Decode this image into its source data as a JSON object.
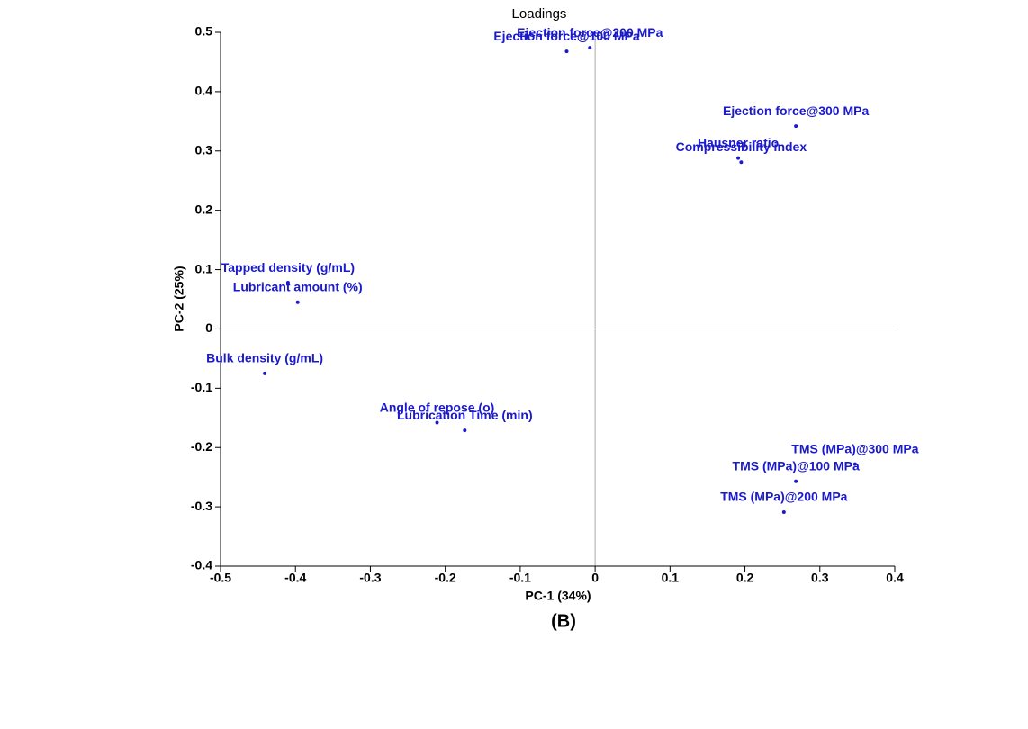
{
  "chart_data": {
    "type": "scatter",
    "title": "Loadings",
    "caption": "(B)",
    "x_label": "PC-1 (34%)",
    "y_label": "PC-2 (25%)",
    "color": "#1a1acc",
    "point_labels": [
      "Ejection force@100 MPa",
      "Ejection force@200 MPa",
      "Ejection force@300 MPa",
      "Hausner ratio",
      "Compressibility index",
      "Tapped density (g/mL)",
      "Lubricant amount (%)",
      "Bulk density (g/mL)",
      "Angle of repose (o)",
      "Lubrication Time (min)",
      "TMS (MPa)@300 MPa",
      "TMS (MPa)@100 MPa",
      "TMS (MPa)@200 MPa"
    ],
    "x": [
      -0.038,
      -0.007,
      0.268,
      0.191,
      0.195,
      -0.41,
      -0.397,
      -0.441,
      -0.211,
      -0.174,
      0.347,
      0.268,
      0.252
    ],
    "values": [
      0.468,
      0.474,
      0.342,
      0.288,
      0.281,
      0.078,
      0.045,
      -0.075,
      -0.158,
      -0.171,
      -0.228,
      -0.257,
      -0.309
    ],
    "xlim": [
      -0.5,
      0.4
    ],
    "xticks": [
      -0.5,
      -0.4,
      -0.3,
      -0.2,
      -0.1,
      0,
      0.1,
      0.2,
      0.3,
      0.4
    ],
    "ylim": [
      -0.4,
      0.5
    ],
    "yticks": [
      -0.4,
      -0.3,
      -0.2,
      -0.1,
      0,
      0.1,
      0.2,
      0.3,
      0.4,
      0.5
    ]
  }
}
